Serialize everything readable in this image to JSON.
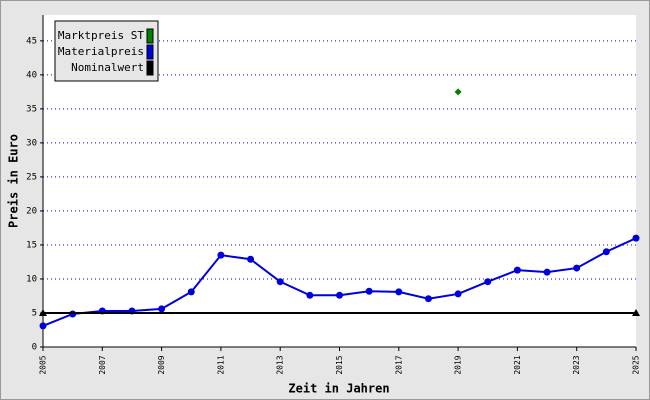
{
  "chart_data": {
    "type": "line",
    "xlabel": "Zeit in Jahren",
    "ylabel": "Preis in Euro",
    "xlim": [
      2005,
      2025
    ],
    "xticks": [
      2005,
      2007,
      2009,
      2011,
      2013,
      2015,
      2017,
      2019,
      2021,
      2023,
      2025
    ],
    "ylim": [
      0,
      48.8
    ],
    "yticks": [
      0,
      5,
      10,
      15,
      20,
      25,
      30,
      35,
      40,
      45
    ],
    "grid": true,
    "legend": "top-left",
    "series": [
      {
        "name": "Marktpreis ST",
        "color": "#008000",
        "marker": "diamond",
        "line": false,
        "x": [
          2019
        ],
        "values": [
          37.5
        ]
      },
      {
        "name": "Materialpreis",
        "color": "#0000dd",
        "marker": "circle",
        "line": true,
        "x": [
          2005,
          2006,
          2007,
          2008,
          2009,
          2010,
          2011,
          2012,
          2013,
          2014,
          2015,
          2016,
          2017,
          2018,
          2019,
          2020,
          2021,
          2022,
          2023,
          2024,
          2025
        ],
        "values": [
          3.1,
          4.85,
          5.3,
          5.3,
          5.6,
          8.1,
          13.5,
          12.9,
          9.6,
          7.6,
          7.6,
          8.2,
          8.1,
          7.1,
          7.8,
          9.6,
          11.3,
          11.0,
          11.6,
          14.0,
          16.0
        ]
      },
      {
        "name": "Nominalwert",
        "color": "#000000",
        "marker": "triangle",
        "line": true,
        "x": [
          2005,
          2025
        ],
        "values": [
          5,
          5
        ]
      }
    ]
  }
}
